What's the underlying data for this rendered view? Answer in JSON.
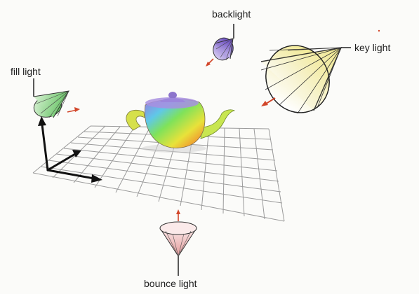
{
  "labels": {
    "backlight": "backlight",
    "key_light": "key light",
    "fill_light": "fill light",
    "bounce_light": "bounce light"
  },
  "colors": {
    "key_light": "#f3f0b8",
    "backlight": "#8a6fd0",
    "fill_light": "#8ed08a",
    "bounce_light": "#f0b8b8",
    "direction_arrow": "#d2462a",
    "grid": "#9a9a9a",
    "axes": "#111111"
  }
}
